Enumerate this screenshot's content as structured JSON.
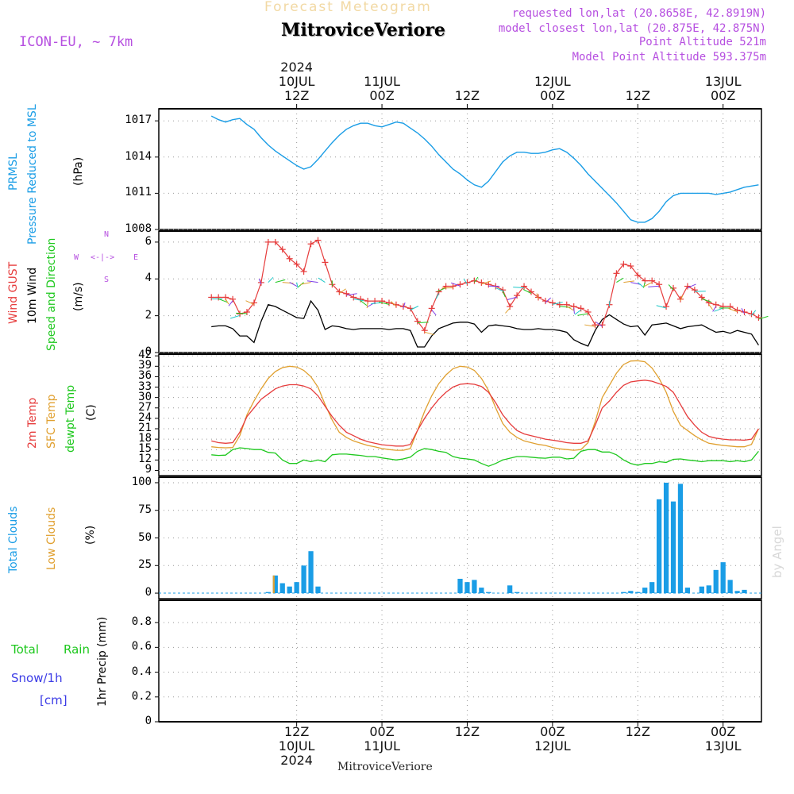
{
  "header": {
    "title": "Forecast Meteogram",
    "location": "MitroviceVeriore",
    "model": "ICON-EU, ~ 7km",
    "requested": "requested lon,lat (20.8658E, 42.8919N)",
    "closest": "model closest lon,lat (20.875E, 42.875N)",
    "altitude": "Point Altitude 521m",
    "model_altitude": "Model Point Altitude 593.375m",
    "watermark": "by Angel"
  },
  "time_axis": {
    "top": [
      {
        "t": 12,
        "lines": [
          "2024",
          "10JUL",
          "12Z"
        ]
      },
      {
        "t": 24,
        "lines": [
          "11JUL",
          "00Z"
        ]
      },
      {
        "t": 36,
        "lines": [
          "12Z"
        ]
      },
      {
        "t": 48,
        "lines": [
          "12JUL",
          "00Z"
        ]
      },
      {
        "t": 60,
        "lines": [
          "12Z"
        ]
      },
      {
        "t": 72,
        "lines": [
          "13JUL",
          "00Z"
        ]
      }
    ],
    "bottom": [
      {
        "t": 12,
        "lines": [
          "12Z",
          "10JUL",
          "2024"
        ]
      },
      {
        "t": 24,
        "lines": [
          "00Z",
          "11JUL"
        ]
      },
      {
        "t": 36,
        "lines": [
          "12Z"
        ]
      },
      {
        "t": 48,
        "lines": [
          "00Z",
          "12JUL"
        ]
      },
      {
        "t": 60,
        "lines": [
          "12Z"
        ]
      },
      {
        "t": 72,
        "lines": [
          "00Z",
          "13JUL"
        ]
      }
    ],
    "footer_location": "MitroviceVeriore"
  },
  "panels": {
    "pressure": {
      "labels": [
        "PRMSL",
        "Pressure Reduced to MSL"
      ],
      "unit": "(hPa)",
      "label_colors": [
        "#1a9de6",
        "#1a9de6"
      ],
      "ticks": [
        "1008",
        "1011",
        "1014",
        "1017"
      ]
    },
    "wind": {
      "labels": [
        "Wind GUST",
        "10m Wind",
        "Speed and Direction"
      ],
      "label_colors": [
        "#e63c3c",
        "#000000",
        "#1ec81e"
      ],
      "unit": "(m/s)",
      "ticks": [
        "0",
        "2",
        "4",
        "6"
      ],
      "compass": {
        "n": "N",
        "s": "S",
        "w": "W",
        "e": "E",
        "arrows": "<-|->"
      }
    },
    "temp": {
      "labels": [
        "2m Temp",
        "SFC Temp",
        "dewpt Temp"
      ],
      "label_colors": [
        "#e63c3c",
        "#e0a030",
        "#1ec81e"
      ],
      "unit": "(C)",
      "ticks": [
        "9",
        "12",
        "15",
        "18",
        "21",
        "24",
        "27",
        "30",
        "33",
        "36",
        "39",
        "42"
      ]
    },
    "clouds": {
      "labels": [
        "Total Clouds",
        "Low Clouds"
      ],
      "label_colors": [
        "#1a9de6",
        "#e0a030"
      ],
      "unit": "(%)",
      "ticks": [
        "0",
        "25",
        "50",
        "75",
        "100"
      ]
    },
    "precip": {
      "labels": [
        "Total",
        "Rain",
        "Snow/1h",
        "[cm]"
      ],
      "label_colors": [
        "#1ec81e",
        "#1ec81e",
        "#3c3ce6",
        "#3c3ce6"
      ],
      "axis_title": "1hr Precip (mm)",
      "ticks": [
        "0",
        "0.2",
        "0.4",
        "0.6",
        "0.8"
      ]
    }
  },
  "colors": {
    "pressure": "#1a9de6",
    "gust": "#e63c3c",
    "wind": "#000000",
    "t2m": "#e63c3c",
    "sfc": "#e0a030",
    "dewpt": "#1ec81e",
    "total_cloud": "#1a9de6",
    "low_cloud": "#e0a030",
    "grid": "#999999",
    "label_purple": "#b64fe0"
  },
  "chart_data": [
    {
      "type": "line",
      "name": "pressure",
      "ylabel": "Pressure Reduced to MSL (hPa)",
      "ylim": [
        1008,
        1018
      ],
      "x_hours": [
        0,
        1,
        2,
        3,
        4,
        5,
        6,
        7,
        8,
        9,
        10,
        11,
        12,
        13,
        14,
        15,
        16,
        17,
        18,
        19,
        20,
        21,
        22,
        23,
        24,
        25,
        26,
        27,
        28,
        29,
        30,
        31,
        32,
        33,
        34,
        35,
        36,
        37,
        38,
        39,
        40,
        41,
        42,
        43,
        44,
        45,
        46,
        47,
        48,
        49,
        50,
        51,
        52,
        53,
        54,
        55,
        56,
        57,
        58,
        59,
        60,
        61,
        62,
        63,
        64,
        65,
        66,
        67,
        68,
        69,
        70,
        71,
        72,
        73,
        74,
        75,
        76,
        77
      ],
      "values": [
        1017.4,
        1017.1,
        1016.9,
        1017.1,
        1017.2,
        1016.7,
        1016.3,
        1015.6,
        1015.0,
        1014.5,
        1014.1,
        1013.7,
        1013.3,
        1013.0,
        1013.2,
        1013.8,
        1014.5,
        1015.2,
        1015.8,
        1016.3,
        1016.6,
        1016.8,
        1016.8,
        1016.6,
        1016.5,
        1016.7,
        1016.9,
        1016.8,
        1016.4,
        1016.0,
        1015.5,
        1014.9,
        1014.2,
        1013.6,
        1013.0,
        1012.6,
        1012.1,
        1011.7,
        1011.5,
        1012.0,
        1012.8,
        1013.6,
        1014.1,
        1014.4,
        1014.4,
        1014.3,
        1014.3,
        1014.4,
        1014.6,
        1014.7,
        1014.4,
        1013.9,
        1013.3,
        1012.6,
        1012.0,
        1011.4,
        1010.8,
        1010.2,
        1009.5,
        1008.8,
        1008.6,
        1008.6,
        1008.9,
        1009.5,
        1010.3,
        1010.8,
        1011.0,
        1011.0,
        1011.0,
        1011.0,
        1011.0,
        1010.9,
        1011.0,
        1011.1,
        1011.3,
        1011.5,
        1011.6,
        1011.7
      ]
    },
    {
      "type": "line",
      "name": "wind",
      "ylabel": "Speed and Direction (m/s)",
      "ylim": [
        0,
        6.6
      ],
      "x_hours": [
        0,
        1,
        2,
        3,
        4,
        5,
        6,
        7,
        8,
        9,
        10,
        11,
        12,
        13,
        14,
        15,
        16,
        17,
        18,
        19,
        20,
        21,
        22,
        23,
        24,
        25,
        26,
        27,
        28,
        29,
        30,
        31,
        32,
        33,
        34,
        35,
        36,
        37,
        38,
        39,
        40,
        41,
        42,
        43,
        44,
        45,
        46,
        47,
        48,
        49,
        50,
        51,
        52,
        53,
        54,
        55,
        56,
        57,
        58,
        59,
        60,
        61,
        62,
        63,
        64,
        65,
        66,
        67,
        68,
        69,
        70,
        71,
        72,
        73,
        74,
        75,
        76,
        77
      ],
      "series": [
        {
          "name": "Wind GUST",
          "values": [
            3.0,
            3.0,
            3.0,
            2.9,
            2.1,
            2.2,
            2.7,
            3.8,
            6.0,
            6.0,
            5.6,
            5.1,
            4.8,
            4.4,
            5.9,
            6.1,
            4.9,
            3.7,
            3.3,
            3.2,
            3.0,
            2.9,
            2.8,
            2.8,
            2.8,
            2.7,
            2.6,
            2.5,
            2.4,
            1.7,
            1.2,
            2.4,
            3.3,
            3.6,
            3.6,
            3.7,
            3.8,
            3.9,
            3.8,
            3.7,
            3.6,
            3.4,
            2.5,
            3.1,
            3.6,
            3.3,
            3.0,
            2.8,
            2.7,
            2.6,
            2.6,
            2.5,
            2.4,
            2.2,
            1.5,
            1.5,
            2.6,
            4.3,
            4.8,
            4.7,
            4.2,
            3.9,
            3.9,
            3.7,
            2.5,
            3.5,
            2.9,
            3.6,
            3.4,
            3.0,
            2.7,
            2.6,
            2.5,
            2.5,
            2.3,
            2.2,
            2.1,
            1.9
          ]
        },
        {
          "name": "10m Wind",
          "values": [
            1.4,
            1.45,
            1.45,
            1.3,
            0.9,
            0.9,
            0.55,
            1.7,
            2.6,
            2.5,
            2.3,
            2.1,
            1.9,
            1.85,
            2.8,
            2.3,
            1.25,
            1.45,
            1.4,
            1.3,
            1.25,
            1.3,
            1.3,
            1.3,
            1.3,
            1.25,
            1.3,
            1.3,
            1.2,
            0.3,
            0.3,
            0.9,
            1.3,
            1.45,
            1.6,
            1.65,
            1.65,
            1.55,
            1.1,
            1.45,
            1.5,
            1.45,
            1.4,
            1.3,
            1.25,
            1.25,
            1.3,
            1.25,
            1.25,
            1.2,
            1.1,
            0.7,
            0.5,
            0.35,
            1.2,
            1.8,
            2.05,
            1.8,
            1.55,
            1.4,
            1.45,
            0.95,
            1.5,
            1.55,
            1.6,
            1.45,
            1.3,
            1.4,
            1.45,
            1.5,
            1.3,
            1.1,
            1.15,
            1.05,
            1.2,
            1.1,
            1.0,
            0.4
          ]
        }
      ]
    },
    {
      "type": "line",
      "name": "temperature",
      "ylabel": "(C)",
      "ylim": [
        7.5,
        42.5
      ],
      "x_hours": [
        0,
        1,
        2,
        3,
        4,
        5,
        6,
        7,
        8,
        9,
        10,
        11,
        12,
        13,
        14,
        15,
        16,
        17,
        18,
        19,
        20,
        21,
        22,
        23,
        24,
        25,
        26,
        27,
        28,
        29,
        30,
        31,
        32,
        33,
        34,
        35,
        36,
        37,
        38,
        39,
        40,
        41,
        42,
        43,
        44,
        45,
        46,
        47,
        48,
        49,
        50,
        51,
        52,
        53,
        54,
        55,
        56,
        57,
        58,
        59,
        60,
        61,
        62,
        63,
        64,
        65,
        66,
        67,
        68,
        69,
        70,
        71,
        72,
        73,
        74,
        75,
        76,
        77
      ],
      "series": [
        {
          "name": "2m Temp",
          "values": [
            17.5,
            17.0,
            16.8,
            17.0,
            20.0,
            24.5,
            27.0,
            29.5,
            31.0,
            32.5,
            33.3,
            33.7,
            33.7,
            33.3,
            32.5,
            30.5,
            27.5,
            24.5,
            22.0,
            20.0,
            19.0,
            18.0,
            17.3,
            16.8,
            16.4,
            16.2,
            16.0,
            16.0,
            16.5,
            20.5,
            24.0,
            27.0,
            29.5,
            31.5,
            33.0,
            33.8,
            34.0,
            33.8,
            33.2,
            31.5,
            28.5,
            25.0,
            22.5,
            20.5,
            19.5,
            19.0,
            18.5,
            18.0,
            17.7,
            17.4,
            17.0,
            16.8,
            16.8,
            17.5,
            22.0,
            27.0,
            29.0,
            31.5,
            33.5,
            34.5,
            34.8,
            35.0,
            34.7,
            34.0,
            33.2,
            31.5,
            28.0,
            24.5,
            22.0,
            20.0,
            18.8,
            18.3,
            18.0,
            17.8,
            17.8,
            17.7,
            18.0,
            21.0
          ]
        },
        {
          "name": "SFC Temp",
          "values": [
            15.8,
            15.6,
            15.5,
            15.6,
            19.0,
            25.0,
            29.0,
            32.5,
            35.5,
            37.5,
            38.6,
            39.0,
            38.8,
            37.8,
            36.0,
            33.0,
            28.0,
            23.5,
            20.0,
            18.5,
            17.5,
            16.8,
            16.2,
            15.8,
            15.3,
            15.0,
            14.8,
            14.8,
            15.3,
            20.5,
            26.0,
            30.5,
            34.0,
            36.5,
            38.3,
            39.0,
            38.8,
            37.8,
            35.5,
            32.0,
            27.0,
            22.5,
            20.0,
            18.5,
            17.5,
            17.0,
            16.5,
            16.2,
            15.6,
            15.2,
            15.0,
            14.8,
            15.0,
            17.0,
            23.0,
            30.0,
            33.5,
            37.0,
            39.5,
            40.5,
            40.6,
            40.3,
            38.5,
            35.5,
            31.5,
            26.0,
            22.0,
            20.5,
            19.0,
            17.8,
            16.8,
            16.5,
            16.2,
            16.0,
            15.8,
            15.8,
            16.5,
            21.0
          ]
        },
        {
          "name": "dewpt Temp",
          "values": [
            13.5,
            13.3,
            13.4,
            15.0,
            15.5,
            15.3,
            15.0,
            15.0,
            14.2,
            14.0,
            12.0,
            11.0,
            11.0,
            12.0,
            11.5,
            12.0,
            11.5,
            13.5,
            13.7,
            13.7,
            13.5,
            13.3,
            13.0,
            13.0,
            12.6,
            12.3,
            12.0,
            12.3,
            12.8,
            14.5,
            15.3,
            15.0,
            14.5,
            14.2,
            13.0,
            12.5,
            12.3,
            12.0,
            11.0,
            10.2,
            11.0,
            12.0,
            12.5,
            13.0,
            13.0,
            12.8,
            12.6,
            12.5,
            12.8,
            12.8,
            12.3,
            12.5,
            14.5,
            15.0,
            15.0,
            14.3,
            14.3,
            13.5,
            12.0,
            11.0,
            10.5,
            11.0,
            11.0,
            11.5,
            11.3,
            12.2,
            12.3,
            12.0,
            11.8,
            11.5,
            11.8,
            11.8,
            11.8,
            11.5,
            11.8,
            11.5,
            12.0,
            14.5
          ]
        }
      ]
    },
    {
      "type": "bar",
      "name": "clouds",
      "ylabel": "(%)",
      "ylim": [
        -5,
        105
      ],
      "x_hours": [
        0,
        1,
        2,
        3,
        4,
        5,
        6,
        7,
        8,
        9,
        10,
        11,
        12,
        13,
        14,
        15,
        16,
        17,
        18,
        19,
        20,
        21,
        22,
        23,
        24,
        25,
        26,
        27,
        28,
        29,
        30,
        31,
        32,
        33,
        34,
        35,
        36,
        37,
        38,
        39,
        40,
        41,
        42,
        43,
        44,
        45,
        46,
        47,
        48,
        49,
        50,
        51,
        52,
        53,
        54,
        55,
        56,
        57,
        58,
        59,
        60,
        61,
        62,
        63,
        64,
        65,
        66,
        67,
        68,
        69,
        70,
        71,
        72,
        73,
        74,
        75,
        76,
        77
      ],
      "series": [
        {
          "name": "Total Clouds",
          "values": [
            0,
            0,
            0,
            0,
            0,
            0,
            0,
            0,
            1,
            16,
            9,
            6,
            10,
            25,
            38,
            6,
            0,
            0,
            0,
            0,
            0,
            0,
            0,
            0,
            0,
            0,
            0,
            0,
            0,
            0,
            0,
            0,
            0,
            0,
            0,
            13,
            10,
            12,
            5,
            1,
            0,
            0,
            7,
            1,
            0,
            0,
            0,
            0,
            0,
            0,
            0,
            0,
            0,
            0,
            0,
            0,
            0,
            0,
            1,
            2,
            1,
            5,
            10,
            85,
            100,
            83,
            99,
            5,
            0,
            6,
            7,
            21,
            28,
            12,
            2,
            3,
            0,
            0
          ]
        },
        {
          "name": "Low Clouds",
          "values": [
            0,
            0,
            0,
            0,
            0,
            0,
            0,
            0,
            0,
            16,
            0,
            0,
            0,
            0,
            0,
            0,
            0,
            0,
            0,
            0,
            0,
            0,
            0,
            0,
            0,
            0,
            0,
            0,
            0,
            0,
            0,
            0,
            0,
            0,
            0,
            0,
            0,
            0,
            0,
            0,
            0,
            0,
            0,
            0,
            0,
            0,
            0,
            0,
            0,
            0,
            0,
            0,
            0,
            0,
            0,
            0,
            0,
            0,
            0,
            0,
            0,
            0,
            0,
            0,
            0,
            0,
            0,
            0,
            0,
            0,
            0,
            0,
            0,
            0,
            0,
            0,
            0,
            0
          ]
        }
      ]
    },
    {
      "type": "bar",
      "name": "precip",
      "ylabel": "1hr Precip (mm)",
      "ylim": [
        0,
        0.98
      ],
      "x_hours": [
        0,
        77
      ],
      "values": [
        0,
        0
      ]
    }
  ]
}
